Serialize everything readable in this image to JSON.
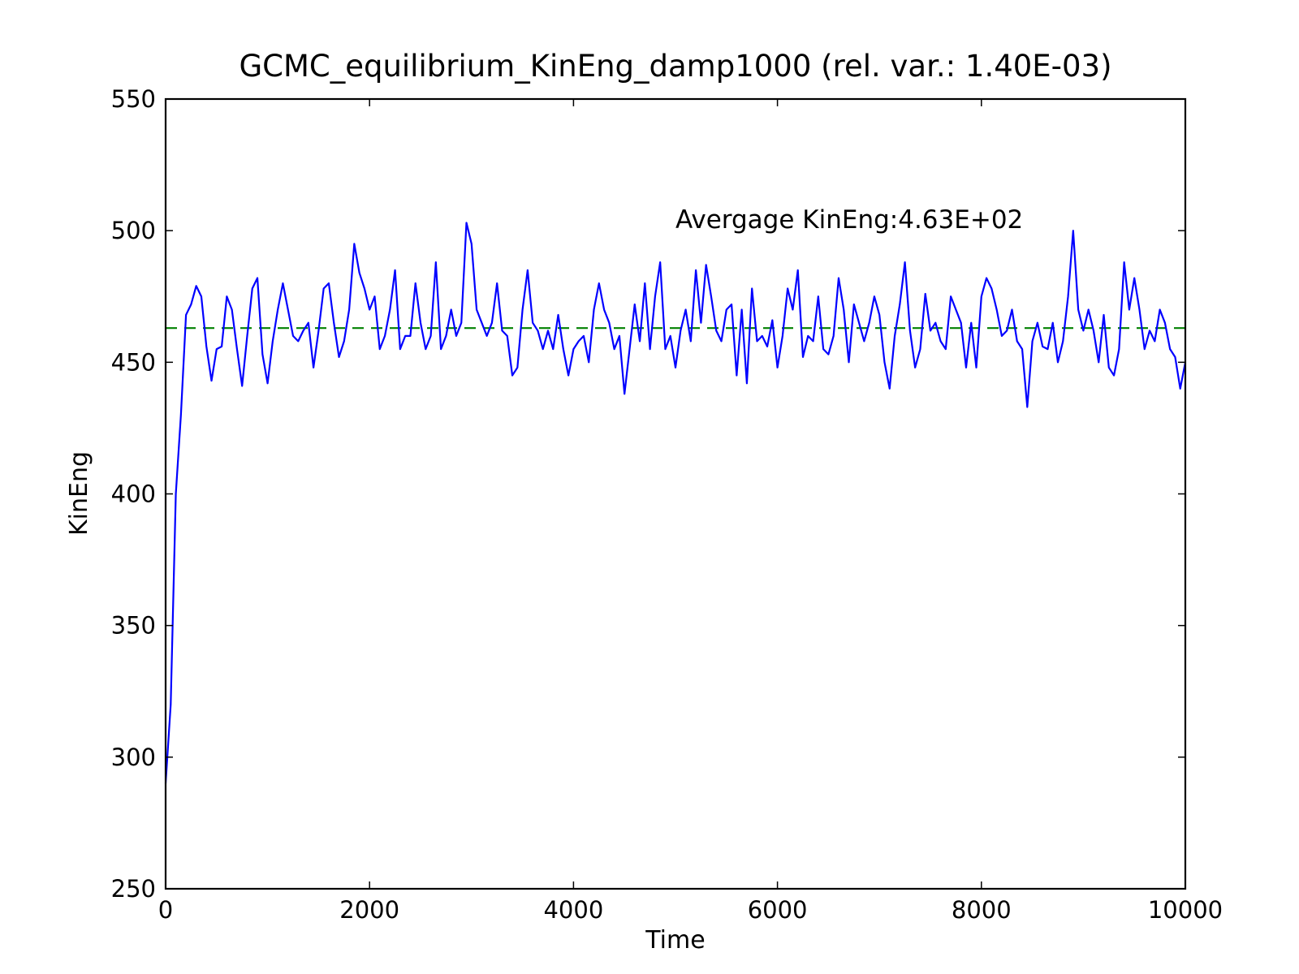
{
  "chart_data": {
    "type": "line",
    "title": "GCMC_equilibrium_KinEng_damp1000 (rel. var.: 1.40E-03)",
    "x_label": "Time",
    "y_label": "KinEng",
    "xlim": [
      0,
      10000
    ],
    "ylim": [
      250,
      550
    ],
    "xticks": [
      0,
      2000,
      4000,
      6000,
      8000,
      10000
    ],
    "yticks": [
      250,
      300,
      350,
      400,
      450,
      500,
      550
    ],
    "x": [
      0,
      50,
      100,
      150,
      200,
      250,
      300,
      350,
      400,
      450,
      500,
      550,
      600,
      650,
      700,
      750,
      800,
      850,
      900,
      950,
      1000,
      1050,
      1100,
      1150,
      1200,
      1250,
      1300,
      1350,
      1400,
      1450,
      1500,
      1550,
      1600,
      1650,
      1700,
      1750,
      1800,
      1850,
      1900,
      1950,
      2000,
      2050,
      2100,
      2150,
      2200,
      2250,
      2300,
      2350,
      2400,
      2450,
      2500,
      2550,
      2600,
      2650,
      2700,
      2750,
      2800,
      2850,
      2900,
      2950,
      3000,
      3050,
      3100,
      3150,
      3200,
      3250,
      3300,
      3350,
      3400,
      3450,
      3500,
      3550,
      3600,
      3650,
      3700,
      3750,
      3800,
      3850,
      3900,
      3950,
      4000,
      4050,
      4100,
      4150,
      4200,
      4250,
      4300,
      4350,
      4400,
      4450,
      4500,
      4550,
      4600,
      4650,
      4700,
      4750,
      4800,
      4850,
      4900,
      4950,
      5000,
      5050,
      5100,
      5150,
      5200,
      5250,
      5300,
      5350,
      5400,
      5450,
      5500,
      5550,
      5600,
      5650,
      5700,
      5750,
      5800,
      5850,
      5900,
      5950,
      6000,
      6050,
      6100,
      6150,
      6200,
      6250,
      6300,
      6350,
      6400,
      6450,
      6500,
      6550,
      6600,
      6650,
      6700,
      6750,
      6800,
      6850,
      6900,
      6950,
      7000,
      7050,
      7100,
      7150,
      7200,
      7250,
      7300,
      7350,
      7400,
      7450,
      7500,
      7550,
      7600,
      7650,
      7700,
      7750,
      7800,
      7850,
      7900,
      7950,
      8000,
      8050,
      8100,
      8150,
      8200,
      8250,
      8300,
      8350,
      8400,
      8450,
      8500,
      8550,
      8600,
      8650,
      8700,
      8750,
      8800,
      8850,
      8900,
      8950,
      9000,
      9050,
      9100,
      9150,
      9200,
      9250,
      9300,
      9350,
      9400,
      9450,
      9500,
      9550,
      9600,
      9650,
      9700,
      9750,
      9800,
      9850,
      9900,
      9950,
      10000
    ],
    "series": [
      {
        "name": "KinEng",
        "color": "#0000ff",
        "values": [
          290,
          320,
          400,
          430,
          468,
          472,
          479,
          475,
          456,
          443,
          455,
          456,
          475,
          470,
          455,
          441,
          460,
          478,
          482,
          453,
          442,
          458,
          470,
          480,
          470,
          460,
          458,
          462,
          465,
          448,
          462,
          478,
          480,
          465,
          452,
          458,
          470,
          495,
          484,
          478,
          470,
          475,
          455,
          460,
          470,
          485,
          455,
          460,
          460,
          480,
          465,
          455,
          460,
          488,
          455,
          460,
          470,
          460,
          465,
          503,
          495,
          470,
          465,
          460,
          465,
          480,
          462,
          460,
          445,
          448,
          470,
          485,
          465,
          462,
          455,
          462,
          455,
          468,
          455,
          445,
          455,
          458,
          460,
          450,
          470,
          480,
          470,
          465,
          455,
          460,
          438,
          455,
          472,
          458,
          480,
          455,
          475,
          488,
          455,
          460,
          448,
          462,
          470,
          458,
          485,
          465,
          487,
          475,
          462,
          458,
          470,
          472,
          445,
          470,
          442,
          478,
          458,
          460,
          456,
          466,
          448,
          460,
          478,
          470,
          485,
          452,
          460,
          458,
          475,
          455,
          453,
          460,
          482,
          470,
          450,
          472,
          465,
          458,
          465,
          475,
          468,
          450,
          440,
          460,
          472,
          488,
          462,
          448,
          455,
          476,
          462,
          465,
          458,
          455,
          475,
          470,
          465,
          448,
          465,
          448,
          475,
          482,
          478,
          470,
          460,
          462,
          470,
          458,
          455,
          433,
          458,
          465,
          456,
          455,
          465,
          450,
          458,
          475,
          500,
          470,
          462,
          470,
          462,
          450,
          468,
          448,
          445,
          455,
          488,
          470,
          482,
          470,
          455,
          462,
          458,
          470,
          465,
          455,
          452,
          440,
          450
        ]
      }
    ],
    "hline": {
      "value": 463,
      "color": "#008000"
    },
    "annotation": "Avergage KinEng:4.63E+02"
  }
}
